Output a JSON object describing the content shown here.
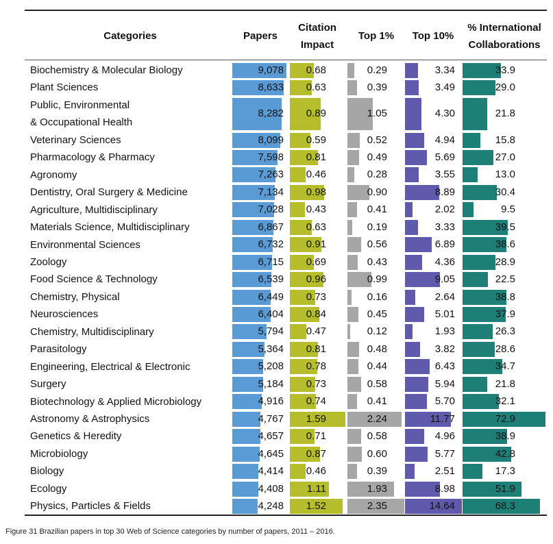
{
  "chart_data": {
    "type": "table",
    "headers": {
      "categories": "Categories",
      "papers": "Papers",
      "citation": [
        "Citation",
        "Impact"
      ],
      "top1": "Top 1%",
      "top10": "Top 10%",
      "intl": [
        "% International",
        "Collaborations"
      ]
    },
    "colors": {
      "papers": "#5b9bd5",
      "citation": "#b5bd2a",
      "top1": "#a6a6a6",
      "top10": "#5f5aac",
      "intl": "#1e7f78"
    },
    "rows": [
      {
        "category": [
          "Biochemistry & Molecular Biology"
        ],
        "papers": "9,078",
        "citation": "0.68",
        "top1": "0.29",
        "top10": "3.34",
        "intl": "33.9"
      },
      {
        "category": [
          "Plant Sciences"
        ],
        "papers": "8,633",
        "citation": "0.63",
        "top1": "0.39",
        "top10": "3.49",
        "intl": "29.0"
      },
      {
        "category": [
          "Public, Environmental",
          " & Occupational Health"
        ],
        "papers": "8,282",
        "citation": "0.89",
        "top1": "1.05",
        "top10": "4.30",
        "intl": "21.8"
      },
      {
        "category": [
          "Veterinary Sciences"
        ],
        "papers": "8,099",
        "citation": "0.59",
        "top1": "0.52",
        "top10": "4.94",
        "intl": "15.8"
      },
      {
        "category": [
          "Pharmacology & Pharmacy"
        ],
        "papers": "7,598",
        "citation": "0.81",
        "top1": "0.49",
        "top10": "5.69",
        "intl": "27.0"
      },
      {
        "category": [
          "Agronomy"
        ],
        "papers": "7,263",
        "citation": "0.46",
        "top1": "0.28",
        "top10": "3.55",
        "intl": "13.0"
      },
      {
        "category": [
          "Dentistry, Oral Surgery & Medicine"
        ],
        "papers": "7,134",
        "citation": "0.98",
        "top1": "0.90",
        "top10": "8.89",
        "intl": "30.4"
      },
      {
        "category": [
          "Agriculture, Multidisciplinary"
        ],
        "papers": "7,028",
        "citation": "0.43",
        "top1": "0.41",
        "top10": "2.02",
        "intl": "9.5"
      },
      {
        "category": [
          "Materials Science, Multidisciplinary"
        ],
        "papers": "6,867",
        "citation": "0.63",
        "top1": "0.19",
        "top10": "3.33",
        "intl": "39.5"
      },
      {
        "category": [
          "Environmental Sciences"
        ],
        "papers": "6,732",
        "citation": "0.91",
        "top1": "0.56",
        "top10": "6.89",
        "intl": "38.6"
      },
      {
        "category": [
          "Zoology"
        ],
        "papers": "6,715",
        "citation": "0.69",
        "top1": "0.43",
        "top10": "4.36",
        "intl": "28.9"
      },
      {
        "category": [
          "Food Science & Technology"
        ],
        "papers": "6,539",
        "citation": "0.96",
        "top1": "0.99",
        "top10": "9.05",
        "intl": "22.5"
      },
      {
        "category": [
          "Chemistry, Physical"
        ],
        "papers": "6,449",
        "citation": "0.73",
        "top1": "0.16",
        "top10": "2.64",
        "intl": "38.8"
      },
      {
        "category": [
          "Neurosciences"
        ],
        "papers": "6,404",
        "citation": "0.84",
        "top1": "0.45",
        "top10": "5.01",
        "intl": "37.9"
      },
      {
        "category": [
          "Chemistry, Multidisciplinary"
        ],
        "papers": "5,794",
        "citation": "0.47",
        "top1": "0.12",
        "top10": "1.93",
        "intl": "26.3"
      },
      {
        "category": [
          "Parasitology"
        ],
        "papers": "5,364",
        "citation": "0.81",
        "top1": "0.48",
        "top10": "3.82",
        "intl": "28.6"
      },
      {
        "category": [
          "Engineering, Electrical & Electronic"
        ],
        "papers": "5,208",
        "citation": "0.78",
        "top1": "0.44",
        "top10": "6.43",
        "intl": "34.7"
      },
      {
        "category": [
          "Surgery"
        ],
        "papers": "5,184",
        "citation": "0.73",
        "top1": "0.58",
        "top10": "5.94",
        "intl": "21.8"
      },
      {
        "category": [
          "Biotechnology & Applied Microbiology"
        ],
        "papers": "4,916",
        "citation": "0.74",
        "top1": "0.41",
        "top10": "5.70",
        "intl": "32.1"
      },
      {
        "category": [
          "Astronomy & Astrophysics"
        ],
        "papers": "4,767",
        "citation": "1.59",
        "top1": "2.24",
        "top10": "11.77",
        "intl": "72.9"
      },
      {
        "category": [
          "Genetics & Heredity"
        ],
        "papers": "4,657",
        "citation": "0.71",
        "top1": "0.58",
        "top10": "4.96",
        "intl": "38.9"
      },
      {
        "category": [
          "Microbiology"
        ],
        "papers": "4,645",
        "citation": "0.87",
        "top1": "0.60",
        "top10": "5.77",
        "intl": "42.8"
      },
      {
        "category": [
          "Biology"
        ],
        "papers": "4,414",
        "citation": "0.46",
        "top1": "0.39",
        "top10": "2.51",
        "intl": "17.3"
      },
      {
        "category": [
          "Ecology"
        ],
        "papers": "4,408",
        "citation": "1.11",
        "top1": "1.93",
        "top10": "8.98",
        "intl": "51.9"
      },
      {
        "category": [
          "Physics, Particles & Fields"
        ],
        "papers": "4,248",
        "citation": "1.52",
        "top1": "2.35",
        "top10": "14.64",
        "intl": "68.3"
      }
    ]
  },
  "caption": "Figure 31 Brazilian papers in top 30 Web of Science categories by number of papers, 2011 – 2016."
}
